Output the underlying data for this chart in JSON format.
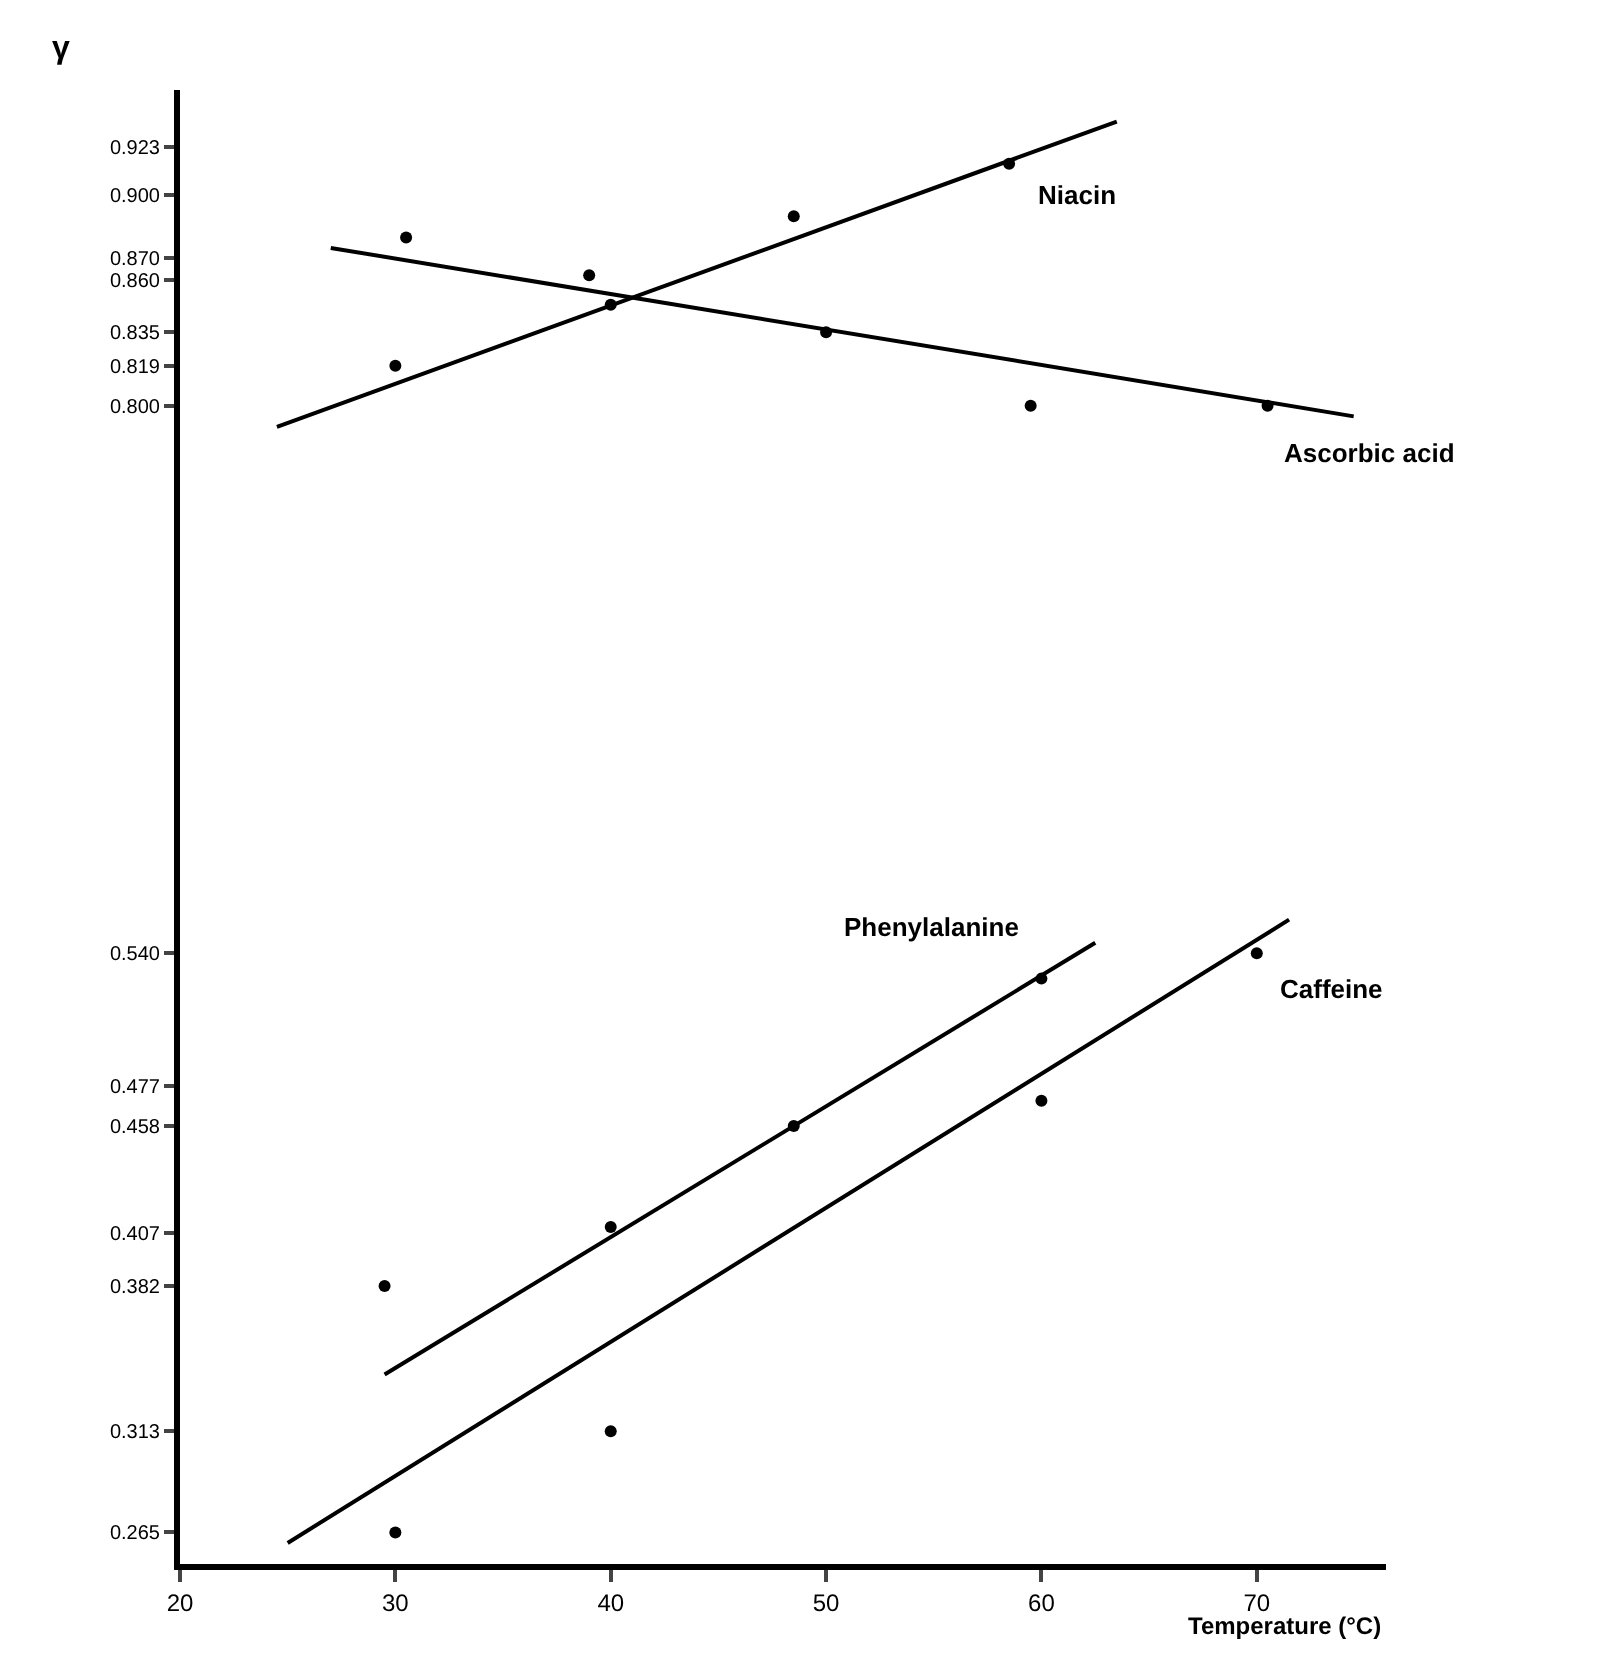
{
  "chart_data": {
    "type": "scatter",
    "xlabel": "Temperature (°C)",
    "ylabel": "γ",
    "xlim": [
      20,
      76
    ],
    "xticks": [
      20,
      30,
      40,
      50,
      60,
      70
    ],
    "ylim": [
      0.25,
      0.95
    ],
    "yticks": [
      0.265,
      0.313,
      0.382,
      0.407,
      0.458,
      0.477,
      {
        "value": 0.54,
        "label": "0.540"
      },
      {
        "value": 0.8,
        "label": "0.800"
      },
      0.819,
      0.835,
      {
        "value": 0.86,
        "label": "0.860"
      },
      {
        "value": 0.87,
        "label": "0.870"
      },
      {
        "value": 0.9,
        "label": "0.900"
      },
      0.923
    ],
    "grid": false,
    "legend": false,
    "marker": "circle",
    "series": [
      {
        "name": "Niacin",
        "color": "#000000",
        "x": [
          30,
          40,
          48.5,
          58.5
        ],
        "values": [
          0.819,
          0.848,
          0.89,
          0.915
        ]
      },
      {
        "type": "line",
        "marker": "none",
        "color": "#000000",
        "x": [
          24.5,
          63.5
        ],
        "values": [
          0.79,
          0.935
        ]
      },
      {
        "name": "Ascorbic acid",
        "color": "#000000",
        "x": [
          30.5,
          39,
          50,
          59.5,
          70.5
        ],
        "values": [
          0.88,
          0.862,
          0.835,
          0.8,
          0.8
        ]
      },
      {
        "type": "line",
        "marker": "none",
        "color": "#000000",
        "x": [
          27,
          74.5
        ],
        "values": [
          0.875,
          0.795
        ]
      },
      {
        "name": "Phenylalanine",
        "color": "#000000",
        "x": [
          29.5,
          40,
          48.5,
          60
        ],
        "values": [
          0.382,
          0.41,
          0.458,
          0.528
        ]
      },
      {
        "type": "line",
        "marker": "none",
        "color": "#000000",
        "x": [
          29.5,
          62.5
        ],
        "values": [
          0.34,
          0.545
        ]
      },
      {
        "name": "Caffeine",
        "color": "#000000",
        "x": [
          30,
          40,
          60,
          70
        ],
        "values": [
          0.265,
          0.313,
          0.47,
          0.54
        ]
      },
      {
        "type": "line",
        "marker": "none",
        "color": "#000000",
        "x": [
          25,
          71.5
        ],
        "values": [
          0.26,
          0.556
        ]
      }
    ]
  }
}
